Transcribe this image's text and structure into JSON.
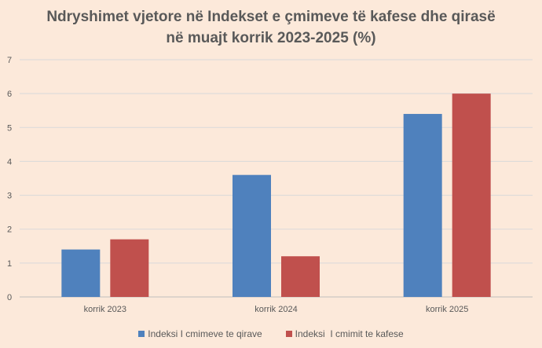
{
  "chart_data": {
    "type": "bar",
    "title_line1": "Ndryshimet vjetore në Indekset e çmimeve të kafese dhe qirasë",
    "title_line2": "në muajt korrik 2023-2025 (%)",
    "categories": [
      "korrik 2023",
      "korrik 2024",
      "korrik 2025"
    ],
    "series": [
      {
        "name": "Indeksi I cmimeve te qirave",
        "color": "#4f81bd",
        "values": [
          1.4,
          3.6,
          5.4
        ]
      },
      {
        "name": "Indeksi  I cmimit te kafese",
        "color": "#c0504d",
        "values": [
          1.7,
          1.2,
          6.0
        ]
      }
    ],
    "ylim": [
      0,
      7
    ],
    "yticks": [
      "0",
      "1",
      "2",
      "3",
      "4",
      "5",
      "6",
      "7"
    ],
    "grid": true,
    "legend": "bottom"
  }
}
